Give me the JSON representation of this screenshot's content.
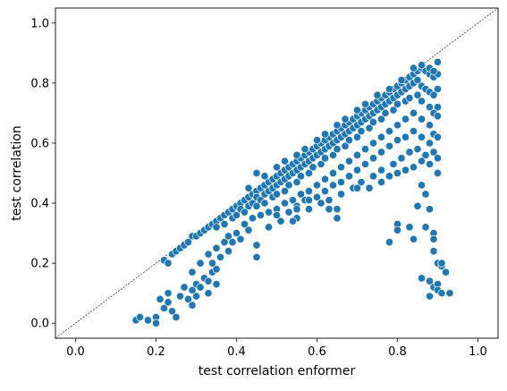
{
  "chart_data": {
    "type": "scatter",
    "title": "",
    "xlabel": "test correlation enformer",
    "ylabel": "test correlation",
    "xlim": [
      -0.05,
      1.05
    ],
    "ylim": [
      -0.05,
      1.05
    ],
    "xticks": [
      0.0,
      0.2,
      0.4,
      0.6,
      0.8,
      1.0
    ],
    "yticks": [
      0.0,
      0.2,
      0.4,
      0.6,
      0.8,
      1.0
    ],
    "xtick_labels": [
      "0.0",
      "0.2",
      "0.4",
      "0.6",
      "0.8",
      "1.0"
    ],
    "ytick_labels": [
      "0.0",
      "0.2",
      "0.4",
      "0.6",
      "0.8",
      "1.0"
    ],
    "grid": false,
    "reference_line": {
      "style": "dashed",
      "from": [
        -0.05,
        -0.05
      ],
      "to": [
        1.05,
        1.05
      ],
      "color": "#000000"
    },
    "marker_color": "#1f77b4",
    "points": [
      [
        0.15,
        0.01
      ],
      [
        0.16,
        0.02
      ],
      [
        0.18,
        0.01
      ],
      [
        0.2,
        0.02
      ],
      [
        0.2,
        0.0
      ],
      [
        0.21,
        0.08
      ],
      [
        0.22,
        0.05
      ],
      [
        0.23,
        0.1
      ],
      [
        0.23,
        0.07
      ],
      [
        0.24,
        0.04
      ],
      [
        0.25,
        0.02
      ],
      [
        0.26,
        0.09
      ],
      [
        0.27,
        0.12
      ],
      [
        0.28,
        0.08
      ],
      [
        0.29,
        0.11
      ],
      [
        0.29,
        0.06
      ],
      [
        0.3,
        0.13
      ],
      [
        0.3,
        0.09
      ],
      [
        0.31,
        0.12
      ],
      [
        0.32,
        0.15
      ],
      [
        0.33,
        0.14
      ],
      [
        0.33,
        0.1
      ],
      [
        0.34,
        0.17
      ],
      [
        0.35,
        0.13
      ],
      [
        0.35,
        0.18
      ],
      [
        0.29,
        0.17
      ],
      [
        0.31,
        0.2
      ],
      [
        0.33,
        0.23
      ],
      [
        0.34,
        0.2
      ],
      [
        0.35,
        0.25
      ],
      [
        0.36,
        0.22
      ],
      [
        0.37,
        0.27
      ],
      [
        0.38,
        0.24
      ],
      [
        0.38,
        0.29
      ],
      [
        0.39,
        0.27
      ],
      [
        0.4,
        0.3
      ],
      [
        0.41,
        0.28
      ],
      [
        0.42,
        0.33
      ],
      [
        0.43,
        0.31
      ],
      [
        0.44,
        0.35
      ],
      [
        0.45,
        0.26
      ],
      [
        0.45,
        0.22
      ],
      [
        0.22,
        0.21
      ],
      [
        0.23,
        0.2
      ],
      [
        0.24,
        0.23
      ],
      [
        0.25,
        0.24
      ],
      [
        0.26,
        0.25
      ],
      [
        0.27,
        0.26
      ],
      [
        0.28,
        0.27
      ],
      [
        0.29,
        0.29
      ],
      [
        0.3,
        0.29
      ],
      [
        0.31,
        0.3
      ],
      [
        0.32,
        0.31
      ],
      [
        0.33,
        0.32
      ],
      [
        0.34,
        0.33
      ],
      [
        0.35,
        0.34
      ],
      [
        0.36,
        0.35
      ],
      [
        0.37,
        0.36
      ],
      [
        0.38,
        0.37
      ],
      [
        0.39,
        0.38
      ],
      [
        0.4,
        0.39
      ],
      [
        0.41,
        0.4
      ],
      [
        0.42,
        0.41
      ],
      [
        0.43,
        0.42
      ],
      [
        0.44,
        0.43
      ],
      [
        0.45,
        0.44
      ],
      [
        0.46,
        0.45
      ],
      [
        0.47,
        0.46
      ],
      [
        0.48,
        0.47
      ],
      [
        0.49,
        0.48
      ],
      [
        0.5,
        0.49
      ],
      [
        0.51,
        0.5
      ],
      [
        0.52,
        0.51
      ],
      [
        0.53,
        0.52
      ],
      [
        0.54,
        0.53
      ],
      [
        0.55,
        0.54
      ],
      [
        0.56,
        0.55
      ],
      [
        0.57,
        0.56
      ],
      [
        0.58,
        0.57
      ],
      [
        0.59,
        0.58
      ],
      [
        0.6,
        0.59
      ],
      [
        0.61,
        0.6
      ],
      [
        0.62,
        0.61
      ],
      [
        0.63,
        0.62
      ],
      [
        0.64,
        0.63
      ],
      [
        0.65,
        0.64
      ],
      [
        0.66,
        0.65
      ],
      [
        0.67,
        0.66
      ],
      [
        0.68,
        0.67
      ],
      [
        0.69,
        0.68
      ],
      [
        0.7,
        0.69
      ],
      [
        0.71,
        0.7
      ],
      [
        0.72,
        0.71
      ],
      [
        0.73,
        0.72
      ],
      [
        0.74,
        0.73
      ],
      [
        0.75,
        0.74
      ],
      [
        0.76,
        0.75
      ],
      [
        0.77,
        0.76
      ],
      [
        0.78,
        0.77
      ],
      [
        0.79,
        0.78
      ],
      [
        0.8,
        0.79
      ],
      [
        0.81,
        0.8
      ],
      [
        0.82,
        0.81
      ],
      [
        0.83,
        0.82
      ],
      [
        0.84,
        0.83
      ],
      [
        0.85,
        0.84
      ],
      [
        0.86,
        0.85
      ],
      [
        0.87,
        0.84
      ],
      [
        0.88,
        0.83
      ],
      [
        0.89,
        0.82
      ],
      [
        0.9,
        0.87
      ],
      [
        0.9,
        0.83
      ],
      [
        0.9,
        0.78
      ],
      [
        0.35,
        0.32
      ],
      [
        0.37,
        0.33
      ],
      [
        0.39,
        0.35
      ],
      [
        0.4,
        0.36
      ],
      [
        0.41,
        0.38
      ],
      [
        0.43,
        0.39
      ],
      [
        0.44,
        0.4
      ],
      [
        0.45,
        0.42
      ],
      [
        0.46,
        0.41
      ],
      [
        0.47,
        0.43
      ],
      [
        0.48,
        0.44
      ],
      [
        0.49,
        0.45
      ],
      [
        0.5,
        0.46
      ],
      [
        0.51,
        0.47
      ],
      [
        0.52,
        0.48
      ],
      [
        0.53,
        0.49
      ],
      [
        0.54,
        0.5
      ],
      [
        0.55,
        0.51
      ],
      [
        0.56,
        0.52
      ],
      [
        0.57,
        0.53
      ],
      [
        0.58,
        0.54
      ],
      [
        0.59,
        0.55
      ],
      [
        0.6,
        0.56
      ],
      [
        0.61,
        0.57
      ],
      [
        0.62,
        0.58
      ],
      [
        0.63,
        0.59
      ],
      [
        0.64,
        0.6
      ],
      [
        0.65,
        0.61
      ],
      [
        0.66,
        0.62
      ],
      [
        0.67,
        0.63
      ],
      [
        0.68,
        0.64
      ],
      [
        0.69,
        0.65
      ],
      [
        0.7,
        0.66
      ],
      [
        0.71,
        0.67
      ],
      [
        0.72,
        0.68
      ],
      [
        0.73,
        0.69
      ],
      [
        0.74,
        0.7
      ],
      [
        0.75,
        0.71
      ],
      [
        0.76,
        0.72
      ],
      [
        0.77,
        0.73
      ],
      [
        0.78,
        0.74
      ],
      [
        0.79,
        0.75
      ],
      [
        0.8,
        0.76
      ],
      [
        0.81,
        0.77
      ],
      [
        0.82,
        0.78
      ],
      [
        0.83,
        0.79
      ],
      [
        0.84,
        0.8
      ],
      [
        0.85,
        0.81
      ],
      [
        0.86,
        0.79
      ],
      [
        0.87,
        0.78
      ],
      [
        0.88,
        0.77
      ],
      [
        0.89,
        0.76
      ],
      [
        0.9,
        0.72
      ],
      [
        0.42,
        0.37
      ],
      [
        0.45,
        0.39
      ],
      [
        0.47,
        0.4
      ],
      [
        0.49,
        0.42
      ],
      [
        0.5,
        0.43
      ],
      [
        0.52,
        0.44
      ],
      [
        0.53,
        0.46
      ],
      [
        0.55,
        0.47
      ],
      [
        0.56,
        0.49
      ],
      [
        0.58,
        0.5
      ],
      [
        0.59,
        0.52
      ],
      [
        0.61,
        0.53
      ],
      [
        0.62,
        0.55
      ],
      [
        0.64,
        0.56
      ],
      [
        0.65,
        0.58
      ],
      [
        0.67,
        0.59
      ],
      [
        0.68,
        0.61
      ],
      [
        0.7,
        0.62
      ],
      [
        0.71,
        0.64
      ],
      [
        0.73,
        0.65
      ],
      [
        0.74,
        0.67
      ],
      [
        0.76,
        0.68
      ],
      [
        0.77,
        0.7
      ],
      [
        0.79,
        0.71
      ],
      [
        0.8,
        0.73
      ],
      [
        0.82,
        0.74
      ],
      [
        0.83,
        0.75
      ],
      [
        0.85,
        0.76
      ],
      [
        0.86,
        0.74
      ],
      [
        0.88,
        0.72
      ],
      [
        0.89,
        0.7
      ],
      [
        0.9,
        0.69
      ],
      [
        0.46,
        0.36
      ],
      [
        0.48,
        0.37
      ],
      [
        0.5,
        0.38
      ],
      [
        0.52,
        0.4
      ],
      [
        0.54,
        0.41
      ],
      [
        0.56,
        0.43
      ],
      [
        0.58,
        0.44
      ],
      [
        0.6,
        0.46
      ],
      [
        0.62,
        0.48
      ],
      [
        0.64,
        0.5
      ],
      [
        0.66,
        0.52
      ],
      [
        0.68,
        0.54
      ],
      [
        0.7,
        0.56
      ],
      [
        0.72,
        0.58
      ],
      [
        0.74,
        0.6
      ],
      [
        0.76,
        0.62
      ],
      [
        0.78,
        0.64
      ],
      [
        0.8,
        0.66
      ],
      [
        0.82,
        0.68
      ],
      [
        0.84,
        0.7
      ],
      [
        0.86,
        0.68
      ],
      [
        0.88,
        0.66
      ],
      [
        0.89,
        0.63
      ],
      [
        0.5,
        0.36
      ],
      [
        0.53,
        0.37
      ],
      [
        0.55,
        0.39
      ],
      [
        0.57,
        0.41
      ],
      [
        0.6,
        0.42
      ],
      [
        0.62,
        0.44
      ],
      [
        0.64,
        0.46
      ],
      [
        0.66,
        0.47
      ],
      [
        0.68,
        0.49
      ],
      [
        0.7,
        0.51
      ],
      [
        0.72,
        0.53
      ],
      [
        0.74,
        0.55
      ],
      [
        0.76,
        0.57
      ],
      [
        0.78,
        0.59
      ],
      [
        0.8,
        0.61
      ],
      [
        0.82,
        0.62
      ],
      [
        0.84,
        0.64
      ],
      [
        0.86,
        0.62
      ],
      [
        0.88,
        0.6
      ],
      [
        0.89,
        0.57
      ],
      [
        0.55,
        0.35
      ],
      [
        0.58,
        0.38
      ],
      [
        0.61,
        0.4
      ],
      [
        0.63,
        0.41
      ],
      [
        0.66,
        0.43
      ],
      [
        0.69,
        0.45
      ],
      [
        0.71,
        0.47
      ],
      [
        0.74,
        0.49
      ],
      [
        0.76,
        0.51
      ],
      [
        0.79,
        0.53
      ],
      [
        0.81,
        0.55
      ],
      [
        0.83,
        0.57
      ],
      [
        0.85,
        0.58
      ],
      [
        0.87,
        0.56
      ],
      [
        0.88,
        0.53
      ],
      [
        0.9,
        0.55
      ],
      [
        0.7,
        0.45
      ],
      [
        0.73,
        0.45
      ],
      [
        0.76,
        0.47
      ],
      [
        0.78,
        0.49
      ],
      [
        0.8,
        0.5
      ],
      [
        0.82,
        0.51
      ],
      [
        0.84,
        0.52
      ],
      [
        0.86,
        0.54
      ],
      [
        0.9,
        0.5
      ],
      [
        0.9,
        0.62
      ],
      [
        0.48,
        0.32
      ],
      [
        0.51,
        0.34
      ],
      [
        0.54,
        0.34
      ],
      [
        0.55,
        0.38
      ],
      [
        0.58,
        0.41
      ],
      [
        0.63,
        0.38
      ],
      [
        0.65,
        0.38
      ],
      [
        0.65,
        0.35
      ],
      [
        0.78,
        0.27
      ],
      [
        0.8,
        0.33
      ],
      [
        0.8,
        0.31
      ],
      [
        0.83,
        0.32
      ],
      [
        0.84,
        0.28
      ],
      [
        0.85,
        0.39
      ],
      [
        0.86,
        0.46
      ],
      [
        0.87,
        0.43
      ],
      [
        0.87,
        0.32
      ],
      [
        0.88,
        0.38
      ],
      [
        0.89,
        0.3
      ],
      [
        0.89,
        0.28
      ],
      [
        0.89,
        0.24
      ],
      [
        0.9,
        0.2
      ],
      [
        0.91,
        0.19
      ],
      [
        0.91,
        0.2
      ],
      [
        0.92,
        0.17
      ],
      [
        0.86,
        0.15
      ],
      [
        0.88,
        0.14
      ],
      [
        0.89,
        0.12
      ],
      [
        0.9,
        0.13
      ],
      [
        0.9,
        0.11
      ],
      [
        0.91,
        0.1
      ],
      [
        0.93,
        0.1
      ],
      [
        0.88,
        0.09
      ],
      [
        0.43,
        0.45
      ],
      [
        0.45,
        0.5
      ],
      [
        0.47,
        0.49
      ],
      [
        0.5,
        0.52
      ],
      [
        0.52,
        0.54
      ],
      [
        0.55,
        0.56
      ],
      [
        0.57,
        0.58
      ],
      [
        0.6,
        0.61
      ],
      [
        0.62,
        0.63
      ],
      [
        0.65,
        0.66
      ],
      [
        0.67,
        0.68
      ],
      [
        0.7,
        0.71
      ],
      [
        0.72,
        0.73
      ],
      [
        0.75,
        0.76
      ],
      [
        0.78,
        0.78
      ],
      [
        0.81,
        0.81
      ],
      [
        0.84,
        0.85
      ],
      [
        0.86,
        0.86
      ],
      [
        0.88,
        0.85
      ],
      [
        0.89,
        0.84
      ]
    ]
  }
}
